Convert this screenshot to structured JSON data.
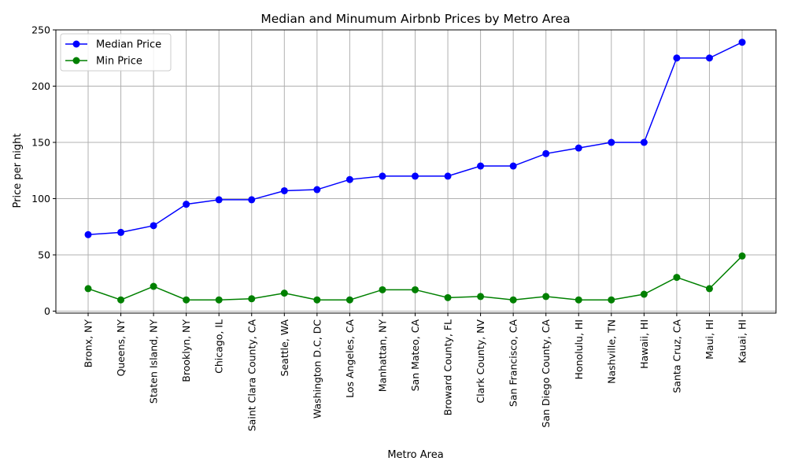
{
  "chart_data": {
    "type": "line",
    "title": "Median and Minumum Airbnb Prices by Metro Area",
    "xlabel": "Metro Area",
    "ylabel": "Price per night",
    "ylim": [
      0,
      250
    ],
    "yticks": [
      0,
      50,
      100,
      150,
      200,
      250
    ],
    "grid": true,
    "legend_position": "top-left",
    "categories": [
      "Bronx, NY",
      "Queens, NY",
      "Staten Island, NY",
      "Brooklyn, NY",
      "Chicago, IL",
      "Saint Clara County, CA",
      "Seattle, WA",
      "Washington D.C, DC",
      "Los Angeles, CA",
      "Manhattan, NY",
      "San Mateo, CA",
      "Broward County, FL",
      "Clark County, NV",
      "San Francisco, CA",
      "San Diego County, CA",
      "Honolulu, HI",
      "Nashville, TN",
      "Hawaii, HI",
      "Santa Cruz, CA",
      "Maui, HI",
      "Kauai, HI"
    ],
    "series": [
      {
        "name": "Median Price",
        "color": "#0000ff",
        "marker": "circle",
        "values": [
          68,
          70,
          76,
          95,
          99,
          99,
          107,
          108,
          117,
          120,
          120,
          120,
          129,
          129,
          140,
          145,
          150,
          150,
          225,
          225,
          239
        ]
      },
      {
        "name": "Min Price",
        "color": "#008000",
        "marker": "circle",
        "values": [
          20,
          10,
          22,
          10,
          10,
          11,
          16,
          10,
          10,
          19,
          19,
          12,
          13,
          10,
          13,
          10,
          10,
          15,
          30,
          20,
          49
        ]
      }
    ]
  }
}
